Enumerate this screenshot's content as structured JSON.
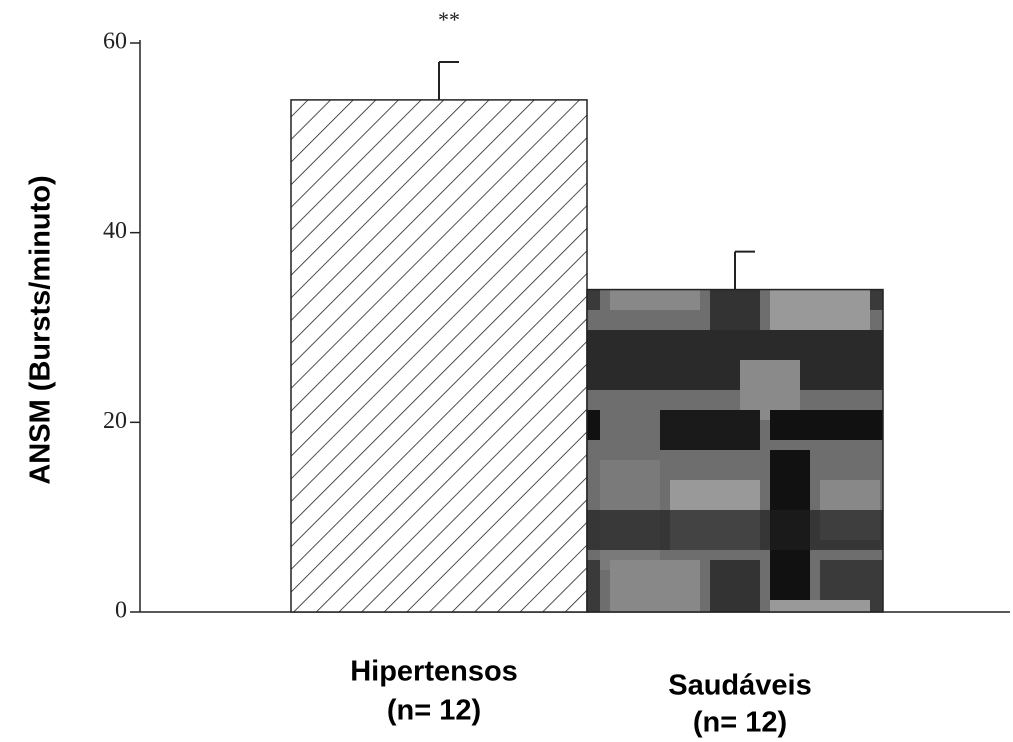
{
  "chart_data": {
    "type": "bar",
    "ylabel": "ANSM  (Bursts/minuto)",
    "categories": [
      [
        "Hipertensos",
        "(n= 12)"
      ],
      [
        "Saudáveis",
        "(n= 12)"
      ]
    ],
    "values": [
      54,
      34
    ],
    "errors": [
      4,
      4
    ],
    "annotation": "**",
    "ylim": [
      0,
      60
    ],
    "yticks": [
      0,
      20,
      40,
      60
    ]
  }
}
